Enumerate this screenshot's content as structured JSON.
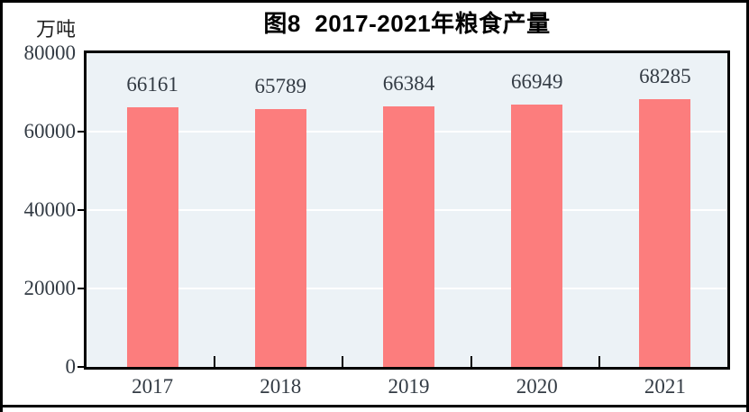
{
  "title": "图8  2017-2021年粮食产量",
  "unit_label": "万吨",
  "chart_data": {
    "type": "bar",
    "title": "图8 2017-2021年粮食产量",
    "ylabel": "万吨",
    "categories": [
      "2017",
      "2018",
      "2019",
      "2020",
      "2021"
    ],
    "values": [
      66161,
      65789,
      66384,
      66949,
      68285
    ],
    "data_labels": [
      66161,
      65789,
      66384,
      66949,
      68285
    ],
    "ylim": [
      0,
      80000
    ],
    "yticks": [
      0,
      20000,
      40000,
      60000,
      80000
    ],
    "ytick_labels": [
      "0",
      "20000",
      "40000",
      "60000",
      "80000"
    ],
    "grid": "horizontal-white",
    "legend": "none",
    "colors": {
      "bar": "#FC7D7D",
      "plot_background": "#ECF2F6",
      "gridline": "#FFFFFF",
      "axis_frame": "#000000",
      "tick_label": "#333B44",
      "title": "#000000"
    }
  }
}
